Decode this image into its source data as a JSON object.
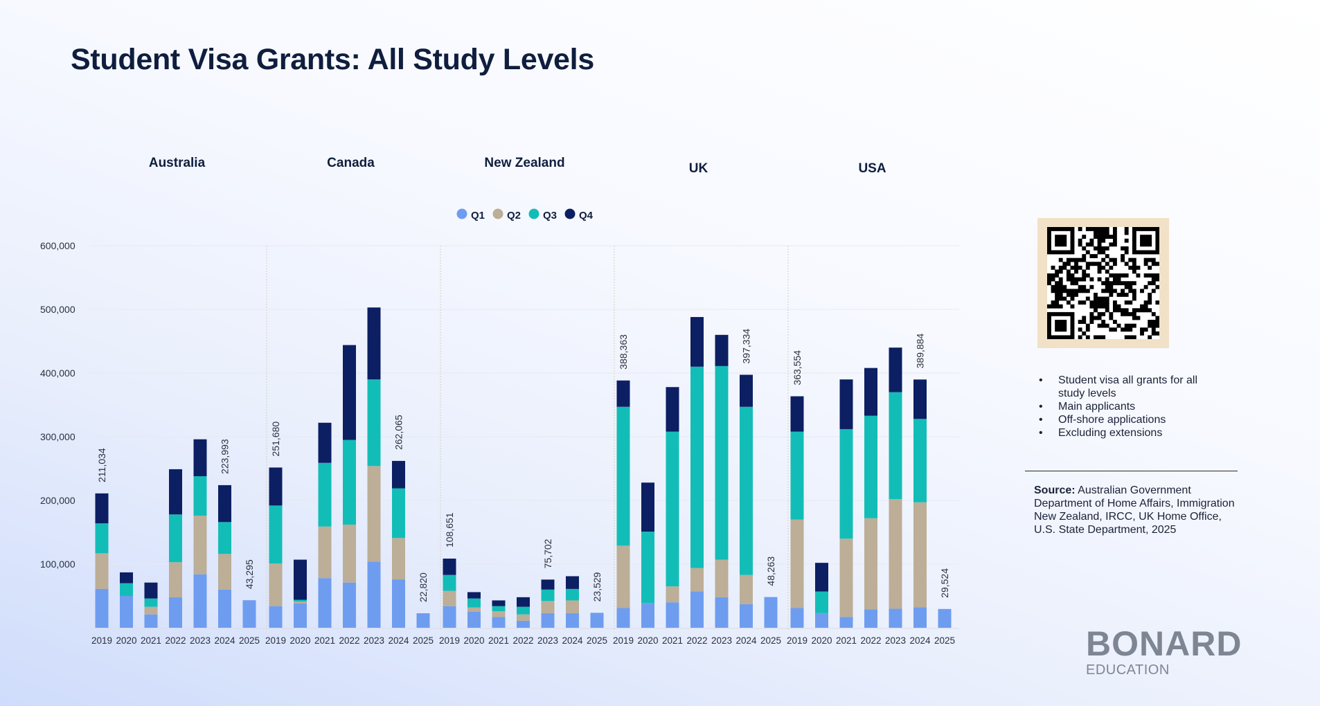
{
  "page": {
    "title": "Student Visa Grants: All Study Levels"
  },
  "colors": {
    "Q1": "#6e9df0",
    "Q2": "#bcae97",
    "Q3": "#13bdb7",
    "Q4": "#0c1f63",
    "axis_text": "#2a2f3d",
    "panel_title": "#0f1e3e"
  },
  "notes": [
    "Student visa all grants for all study levels",
    "Main applicants",
    "Off-shore applications",
    "Excluding extensions"
  ],
  "source": {
    "label": "Source:",
    "text": " Australian Government Department of Home Affairs, Immigration New Zealand, IRCC, UK Home Office, U.S. State Department, 2025"
  },
  "logo": {
    "main": "BONARD",
    "sub": "EDUCATION"
  },
  "qr_icon": "qr-code-icon",
  "chart_data": {
    "type": "bar",
    "stacked": true,
    "ylim": [
      0,
      600000
    ],
    "yticks": [
      100000,
      200000,
      300000,
      400000,
      500000,
      600000
    ],
    "ytick_labels": [
      "100,000",
      "200,000",
      "300,000",
      "400,000",
      "500,000",
      "600,000"
    ],
    "legend": [
      "Q1",
      "Q2",
      "Q3",
      "Q4"
    ],
    "legend_position": "top-center",
    "grid": "horizontal-faint",
    "categories": [
      "2019",
      "2020",
      "2021",
      "2022",
      "2023",
      "2024",
      "2025"
    ],
    "panels": [
      {
        "name": "Australia",
        "series": {
          "Q1": [
            61000,
            50000,
            21000,
            48000,
            84000,
            60000,
            43295
          ],
          "Q2": [
            56000,
            0,
            12000,
            55000,
            92000,
            56000,
            0
          ],
          "Q3": [
            47000,
            20000,
            13000,
            75000,
            62000,
            50000,
            0
          ],
          "Q4": [
            47034,
            17000,
            25000,
            71000,
            58000,
            57993,
            0
          ]
        },
        "labels": [
          {
            "index": 0,
            "text": "211,034"
          },
          {
            "index": 5,
            "text": "223,993"
          },
          {
            "index": 6,
            "text": "43,295"
          }
        ]
      },
      {
        "name": "Canada",
        "series": {
          "Q1": [
            34000,
            38000,
            78000,
            71000,
            104000,
            76000,
            22820
          ],
          "Q2": [
            67000,
            3000,
            81000,
            91000,
            150000,
            65000,
            0
          ],
          "Q3": [
            91000,
            3000,
            100000,
            133000,
            136000,
            78000,
            0
          ],
          "Q4": [
            59680,
            63000,
            63000,
            149000,
            113000,
            43065,
            0
          ]
        },
        "labels": [
          {
            "index": 0,
            "text": "251,680"
          },
          {
            "index": 5,
            "text": "262,065"
          },
          {
            "index": 6,
            "text": "22,820"
          }
        ]
      },
      {
        "name": "New Zealand",
        "series": {
          "Q1": [
            34000,
            25000,
            17000,
            11000,
            23000,
            23000,
            23529
          ],
          "Q2": [
            24000,
            7000,
            9000,
            10000,
            19000,
            20000,
            0
          ],
          "Q3": [
            25000,
            14000,
            8000,
            12000,
            18000,
            18000,
            0
          ],
          "Q4": [
            25651,
            10000,
            9000,
            15000,
            15702,
            20000,
            0
          ]
        },
        "labels": [
          {
            "index": 0,
            "text": "108,651"
          },
          {
            "index": 4,
            "text": "75,702"
          },
          {
            "index": 6,
            "text": "23,529"
          }
        ]
      },
      {
        "name": "UK",
        "series": {
          "Q1": [
            31000,
            39000,
            40000,
            57000,
            48000,
            37000,
            48263
          ],
          "Q2": [
            98000,
            0,
            25000,
            37000,
            59000,
            46000,
            0
          ],
          "Q3": [
            218000,
            112000,
            243000,
            316000,
            304000,
            264000,
            0
          ],
          "Q4": [
            41363,
            77000,
            70000,
            78000,
            49000,
            50334,
            0
          ]
        },
        "labels": [
          {
            "index": 0,
            "text": "388,363"
          },
          {
            "index": 5,
            "text": "397,334"
          },
          {
            "index": 6,
            "text": "48,263"
          }
        ]
      },
      {
        "name": "USA",
        "series": {
          "Q1": [
            31000,
            23000,
            17000,
            29000,
            30000,
            32000,
            29524
          ],
          "Q2": [
            139000,
            0,
            123000,
            143000,
            172000,
            165000,
            0
          ],
          "Q3": [
            138000,
            34000,
            172000,
            161000,
            168000,
            131000,
            0
          ],
          "Q4": [
            55554,
            45000,
            78000,
            75000,
            70000,
            61884,
            0
          ]
        },
        "labels": [
          {
            "index": 0,
            "text": "363,554"
          },
          {
            "index": 5,
            "text": "389,884"
          },
          {
            "index": 6,
            "text": "29,524"
          }
        ]
      }
    ]
  }
}
